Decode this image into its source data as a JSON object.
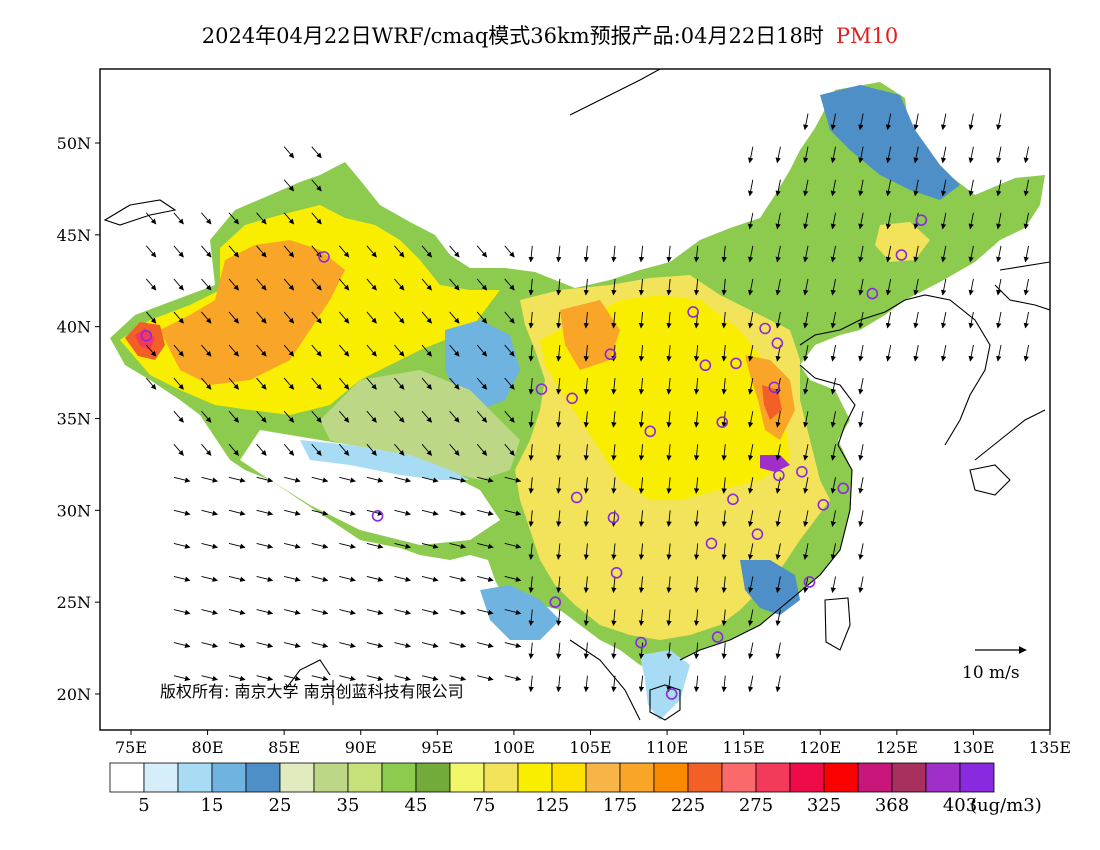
{
  "title": {
    "main": "2024年04月22日WRF/cmaq模式36km预报产品:04月22日18时",
    "variable": "PM10"
  },
  "map": {
    "lon_range": [
      73,
      135
    ],
    "lat_range": [
      18,
      54
    ],
    "lon_ticks": [
      "75E",
      "80E",
      "85E",
      "90E",
      "95E",
      "100E",
      "105E",
      "110E",
      "115E",
      "120E",
      "125E",
      "130E",
      "135E"
    ],
    "lat_ticks": [
      "20N",
      "25N",
      "30N",
      "35N",
      "40N",
      "45N",
      "50N"
    ],
    "copyright": "版权所有: 南京大学  南京创蓝科技有限公司",
    "wind_scale_label": "10 m/s"
  },
  "colorbar": {
    "colors": [
      "#ffffff",
      "#d6eefa",
      "#a7dcf4",
      "#6fb4e0",
      "#4d8fc6",
      "#e0ecc0",
      "#bcd886",
      "#c6e07a",
      "#8ccb4e",
      "#72ab3a",
      "#f2f76a",
      "#f3e35a",
      "#f9ee00",
      "#fde200",
      "#f7b548",
      "#f9a528",
      "#f98a00",
      "#f26028",
      "#fb6a6a",
      "#f43a5a",
      "#ef0a4a",
      "#fb0000",
      "#c8167a",
      "#a8305e",
      "#a02ec8",
      "#8a2ae0"
    ],
    "labels": [
      "5",
      "15",
      "25",
      "35",
      "45",
      "75",
      "125",
      "175",
      "225",
      "275",
      "325",
      "368",
      "403"
    ],
    "units": "(ug/m3)"
  },
  "cities_icon": "monitoring-station-circle-icon"
}
